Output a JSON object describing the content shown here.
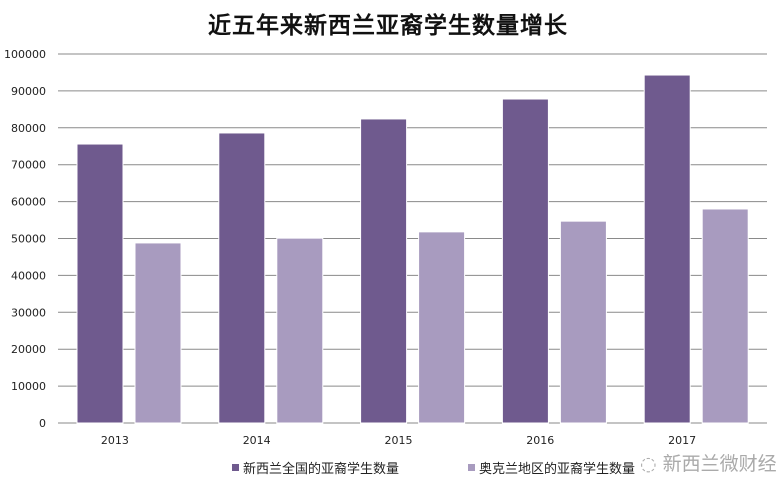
{
  "chart_data": {
    "type": "bar",
    "title": "近五年来新西兰亚裔学生数量增长",
    "categories": [
      "2013",
      "2014",
      "2015",
      "2016",
      "2017"
    ],
    "series": [
      {
        "name": "新西兰全国的亚裔学生数量",
        "color": "#6f5a8e",
        "values": [
          75600,
          78600,
          82400,
          87800,
          94300
        ]
      },
      {
        "name": "奥克兰地区的亚裔学生数量",
        "color": "#a89bbf",
        "values": [
          48800,
          50100,
          51800,
          54700,
          58000
        ]
      }
    ],
    "ylim": [
      0,
      100000
    ],
    "yticks": [
      "0",
      "10000",
      "20000",
      "30000",
      "40000",
      "50000",
      "60000",
      "70000",
      "80000",
      "90000",
      "100000"
    ],
    "grid": true,
    "legend": "bottom"
  },
  "watermark": "新西兰微财经"
}
